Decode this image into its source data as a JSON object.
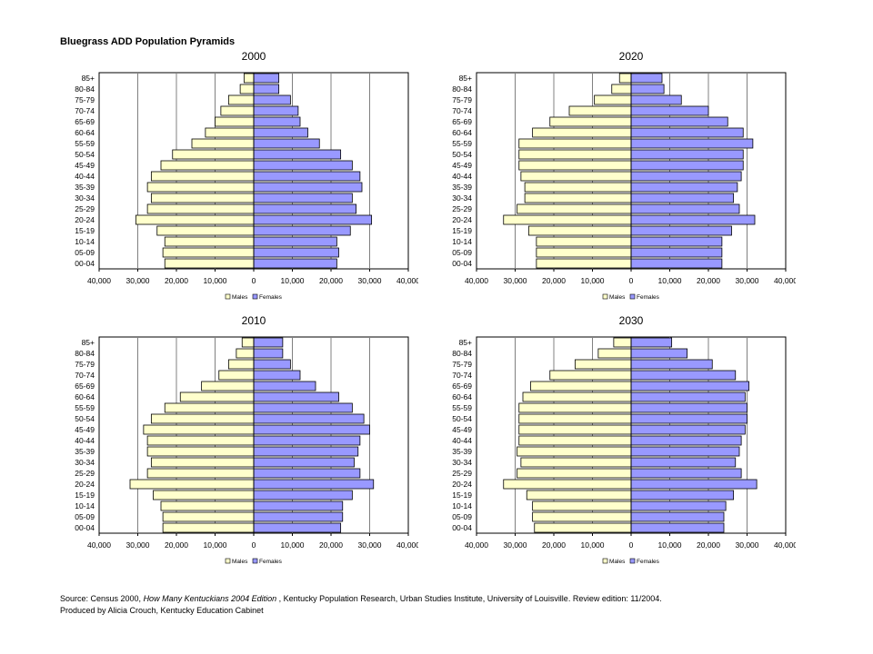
{
  "title": "Bluegrass ADD Population Pyramids",
  "footer": {
    "source_prefix": "Source: Census 2000, ",
    "source_title": "How Many Kentuckians 2004 Edition",
    "source_suffix": " , Kentucky Population Research, Urban Studies Institute, University of Louisville.  Review edition: 11/2004.",
    "credit": "Produced by Alicia Crouch, Kentucky Education Cabinet"
  },
  "colors": {
    "males": "#ffffcc",
    "females": "#9999ff",
    "edge": "#000000",
    "grid": "#808080"
  },
  "chart_data": [
    {
      "type": "bar",
      "orientation": "horizontal",
      "title": "2000",
      "categories": [
        "85+",
        "80-84",
        "75-79",
        "70-74",
        "65-69",
        "60-64",
        "55-59",
        "50-54",
        "45-49",
        "40-44",
        "35-39",
        "30-34",
        "25-29",
        "20-24",
        "15-19",
        "10-14",
        "05-09",
        "00-04"
      ],
      "xlim": [
        -40000,
        40000
      ],
      "xticks": [
        "40,000",
        "30,000",
        "20,000",
        "10,000",
        "0",
        "10,000",
        "20,000",
        "30,000",
        "40,000"
      ],
      "grid": true,
      "legend_position": "bottom",
      "series": [
        {
          "name": "Males",
          "values": [
            2500,
            3500,
            6500,
            8500,
            10000,
            12500,
            16000,
            21000,
            24000,
            26500,
            27500,
            26500,
            27500,
            30500,
            25000,
            23000,
            23500,
            23000
          ]
        },
        {
          "name": "Females",
          "values": [
            6500,
            6500,
            9500,
            11500,
            12000,
            14000,
            17000,
            22500,
            25500,
            27500,
            28000,
            25500,
            26500,
            30500,
            25000,
            21500,
            22000,
            21500
          ]
        }
      ]
    },
    {
      "type": "bar",
      "orientation": "horizontal",
      "title": "2020",
      "categories": [
        "85+",
        "80-84",
        "75-79",
        "70-74",
        "65-69",
        "60-64",
        "55-59",
        "50-54",
        "45-49",
        "40-44",
        "35-39",
        "30-34",
        "25-29",
        "20-24",
        "15-19",
        "10-14",
        "05-09",
        "00-04"
      ],
      "xlim": [
        -40000,
        40000
      ],
      "xticks": [
        "40,000",
        "30,000",
        "20,000",
        "10,000",
        "0",
        "10,000",
        "20,000",
        "30,000",
        "40,000"
      ],
      "grid": true,
      "legend_position": "bottom",
      "series": [
        {
          "name": "Males",
          "values": [
            3000,
            5000,
            9500,
            16000,
            21000,
            25500,
            29000,
            29000,
            29000,
            28500,
            27500,
            27500,
            29500,
            33000,
            26500,
            24500,
            24500,
            24500
          ]
        },
        {
          "name": "Females",
          "values": [
            8000,
            8500,
            13000,
            20000,
            25000,
            29000,
            31500,
            29000,
            29000,
            28500,
            27500,
            26500,
            28000,
            32000,
            26000,
            23500,
            23500,
            23500
          ]
        }
      ]
    },
    {
      "type": "bar",
      "orientation": "horizontal",
      "title": "2010",
      "categories": [
        "85+",
        "80-84",
        "75-79",
        "70-74",
        "65-69",
        "60-64",
        "55-59",
        "50-54",
        "45-49",
        "40-44",
        "35-39",
        "30-34",
        "25-29",
        "20-24",
        "15-19",
        "10-14",
        "05-09",
        "00-04"
      ],
      "xlim": [
        -40000,
        40000
      ],
      "xticks": [
        "40,000",
        "30,000",
        "20,000",
        "10,000",
        "0",
        "10,000",
        "20,000",
        "30,000",
        "40,000"
      ],
      "grid": true,
      "legend_position": "bottom",
      "series": [
        {
          "name": "Males",
          "values": [
            3000,
            4500,
            6500,
            9000,
            13500,
            19000,
            23000,
            26500,
            28500,
            27500,
            27500,
            26500,
            27500,
            32000,
            26000,
            24000,
            23500,
            23500
          ]
        },
        {
          "name": "Females",
          "values": [
            7500,
            7500,
            9500,
            12000,
            16000,
            22000,
            25500,
            28500,
            30000,
            27500,
            27000,
            26000,
            27500,
            31000,
            25500,
            23000,
            23000,
            22500
          ]
        }
      ]
    },
    {
      "type": "bar",
      "orientation": "horizontal",
      "title": "2030",
      "categories": [
        "85+",
        "80-84",
        "75-79",
        "70-74",
        "65-69",
        "60-64",
        "55-59",
        "50-54",
        "45-49",
        "40-44",
        "35-39",
        "30-34",
        "25-29",
        "20-24",
        "15-19",
        "10-14",
        "05-09",
        "00-04"
      ],
      "xlim": [
        -40000,
        40000
      ],
      "xticks": [
        "40,000",
        "30,000",
        "20,000",
        "10,000",
        "0",
        "10,000",
        "20,000",
        "30,000",
        "40,000"
      ],
      "grid": true,
      "legend_position": "bottom",
      "series": [
        {
          "name": "Males",
          "values": [
            4500,
            8500,
            14500,
            21000,
            26000,
            28000,
            29000,
            29000,
            29000,
            29000,
            29500,
            28500,
            29500,
            33000,
            27000,
            25500,
            25500,
            25000
          ]
        },
        {
          "name": "Females",
          "values": [
            10500,
            14500,
            21000,
            27000,
            30500,
            29500,
            30000,
            30000,
            29500,
            28500,
            28000,
            27000,
            28500,
            32500,
            26500,
            24500,
            24000,
            24000
          ]
        }
      ]
    }
  ]
}
